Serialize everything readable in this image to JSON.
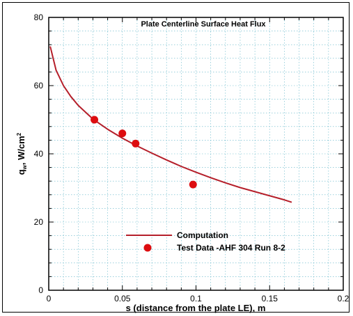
{
  "chart_data": {
    "type": "scatter",
    "title": "Plate Centerline Surface Heat Flux",
    "xlabel": "s (distance from the plate LE), m",
    "ylabel_main": "q",
    "ylabel_sub": "w",
    "ylabel_rest": ", W/cm",
    "ylabel_sup": "2",
    "xlim": [
      0,
      0.2
    ],
    "ylim": [
      0,
      80
    ],
    "x_ticks": [
      0,
      0.05,
      0.1,
      0.15,
      0.2
    ],
    "x_tick_labels": [
      "0",
      "0.05",
      "0.1",
      "0.15",
      "0.2"
    ],
    "y_ticks": [
      0,
      20,
      40,
      60,
      80
    ],
    "y_tick_labels": [
      "0",
      "20",
      "40",
      "60",
      "80"
    ],
    "grid": true,
    "legend_position": "bottom-center",
    "series": [
      {
        "name": "Computation",
        "kind": "line",
        "color": "#b51f2a",
        "x": [
          0.001,
          0.005,
          0.01,
          0.015,
          0.02,
          0.03,
          0.04,
          0.05,
          0.06,
          0.07,
          0.08,
          0.09,
          0.1,
          0.11,
          0.12,
          0.13,
          0.14,
          0.15,
          0.16,
          0.165
        ],
        "y": [
          71.5,
          64.5,
          60.0,
          56.8,
          54.2,
          50.2,
          47.2,
          44.6,
          42.3,
          40.2,
          38.2,
          36.3,
          34.6,
          33.0,
          31.5,
          30.1,
          28.9,
          27.7,
          26.5,
          25.8
        ]
      },
      {
        "name": "Test Data -AHF 304 Run 8-2",
        "kind": "marker",
        "color": "#dd0d10",
        "x": [
          0.031,
          0.05,
          0.059,
          0.098
        ],
        "y": [
          50,
          46,
          43,
          31
        ]
      }
    ]
  }
}
